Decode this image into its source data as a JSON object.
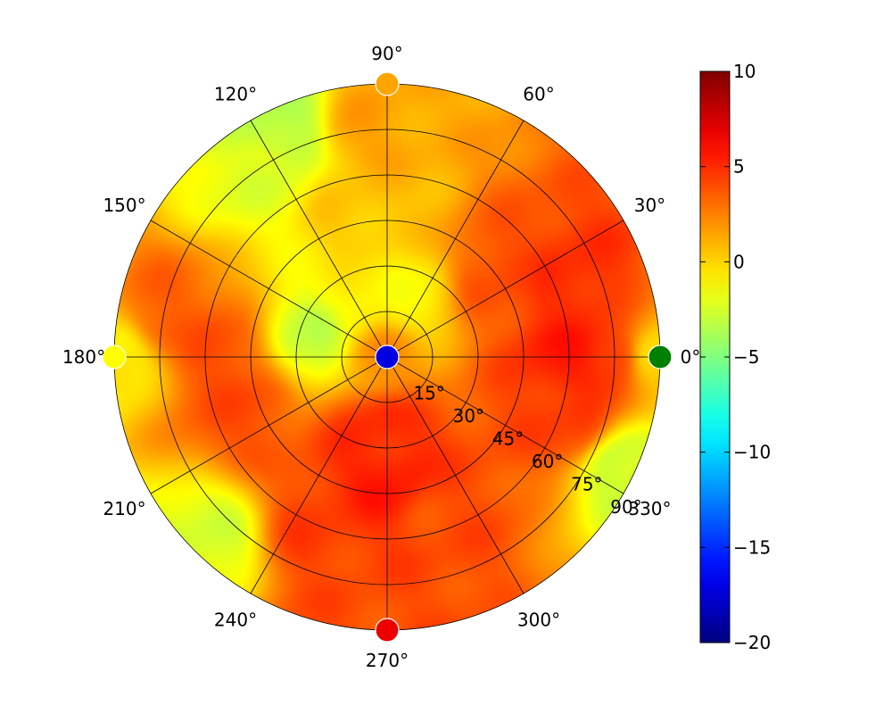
{
  "chart_data": {
    "type": "heatmap",
    "projection": "polar",
    "theta_ticks": [
      {
        "angle": 0,
        "label": "0°"
      },
      {
        "angle": 30,
        "label": "30°"
      },
      {
        "angle": 60,
        "label": "60°"
      },
      {
        "angle": 90,
        "label": "90°"
      },
      {
        "angle": 120,
        "label": "120°"
      },
      {
        "angle": 150,
        "label": "150°"
      },
      {
        "angle": 180,
        "label": "180°"
      },
      {
        "angle": 210,
        "label": "210°"
      },
      {
        "angle": 240,
        "label": "240°"
      },
      {
        "angle": 270,
        "label": "270°"
      },
      {
        "angle": 300,
        "label": "300°"
      },
      {
        "angle": 330,
        "label": "330°"
      }
    ],
    "radial_ticks": [
      {
        "value": 15,
        "label": "15°"
      },
      {
        "value": 30,
        "label": "30°"
      },
      {
        "value": 45,
        "label": "45°"
      },
      {
        "value": 60,
        "label": "60°"
      },
      {
        "value": 75,
        "label": "75°"
      },
      {
        "value": 90,
        "label": "90°"
      }
    ],
    "rlim": [
      0,
      90
    ],
    "radial_label_angle": 330,
    "colormap": "jet",
    "colorbar": {
      "vmin": -20,
      "vmax": 10,
      "ticks": [
        {
          "value": 10,
          "label": "10"
        },
        {
          "value": 5,
          "label": "5"
        },
        {
          "value": 0,
          "label": "0"
        },
        {
          "value": -5,
          "label": "−5"
        },
        {
          "value": -10,
          "label": "−10"
        },
        {
          "value": -15,
          "label": "−15"
        },
        {
          "value": -20,
          "label": "−20"
        }
      ]
    },
    "field_features": [
      {
        "theta": 0,
        "r": 0,
        "value": 2
      },
      {
        "theta": 0,
        "r": 60,
        "value": 5.5
      },
      {
        "theta": 0,
        "r": 75,
        "value": 5
      },
      {
        "theta": 20,
        "r": 65,
        "value": 5
      },
      {
        "theta": 340,
        "r": 65,
        "value": 4.5
      },
      {
        "theta": 35,
        "r": 45,
        "value": 4
      },
      {
        "theta": 270,
        "r": 40,
        "value": 5.5
      },
      {
        "theta": 265,
        "r": 25,
        "value": 5
      },
      {
        "theta": 250,
        "r": 60,
        "value": 4.5
      },
      {
        "theta": 290,
        "r": 55,
        "value": 4
      },
      {
        "theta": 260,
        "r": 80,
        "value": 4
      },
      {
        "theta": 180,
        "r": 55,
        "value": 4
      },
      {
        "theta": 200,
        "r": 50,
        "value": 4
      },
      {
        "theta": 170,
        "r": 75,
        "value": 3.5
      },
      {
        "theta": 165,
        "r": 25,
        "value": -3
      },
      {
        "theta": 120,
        "r": 20,
        "value": -1
      },
      {
        "theta": 70,
        "r": 20,
        "value": -1
      },
      {
        "theta": 115,
        "r": 82,
        "value": -3.5
      },
      {
        "theta": 125,
        "r": 75,
        "value": -2
      },
      {
        "theta": 335,
        "r": 85,
        "value": -3
      },
      {
        "theta": 225,
        "r": 85,
        "value": -2.5
      },
      {
        "theta": 180,
        "r": 88,
        "value": -1
      },
      {
        "theta": 100,
        "r": 50,
        "value": 0.5
      },
      {
        "theta": 95,
        "r": 75,
        "value": 1.5
      },
      {
        "theta": 0,
        "r": 88,
        "value": -0.5
      }
    ],
    "markers": [
      {
        "theta": 0,
        "r": 0,
        "value": -17,
        "color": "#0000e0"
      },
      {
        "theta": 0,
        "r": 90,
        "value": -7,
        "color": "#008000"
      },
      {
        "theta": 90,
        "r": 90,
        "value": 2.5,
        "color": "#ffa500"
      },
      {
        "theta": 180,
        "r": 90,
        "value": -0.5,
        "color": "#ffff00"
      },
      {
        "theta": 270,
        "r": 90,
        "value": 7.5,
        "color": "#ee0000"
      }
    ]
  }
}
